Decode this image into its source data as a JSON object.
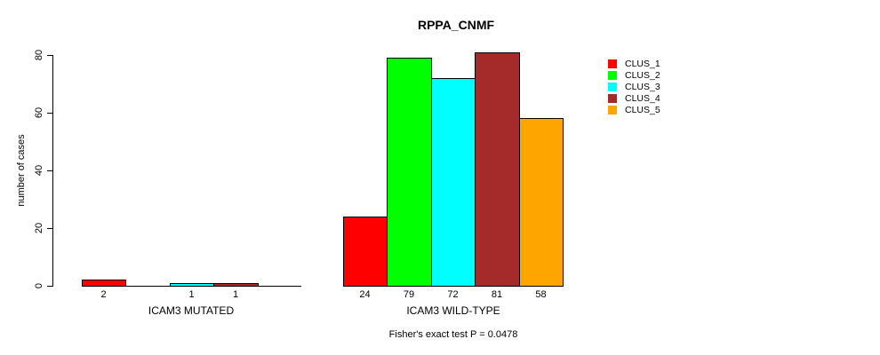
{
  "title": "RPPA_CNMF",
  "footnote": "Fisher's exact test P = 0.0478",
  "legend": {
    "position": "right",
    "items": [
      {
        "label": "CLUS_1",
        "color": "#FF0000"
      },
      {
        "label": "CLUS_2",
        "color": "#00FF00"
      },
      {
        "label": "CLUS_3",
        "color": "#00FFFF"
      },
      {
        "label": "CLUS_4",
        "color": "#A52A2A"
      },
      {
        "label": "CLUS_5",
        "color": "#FFA500"
      }
    ]
  },
  "chart_data": {
    "type": "bar",
    "title": "RPPA_CNMF",
    "ylabel": "number of cases",
    "ylim": [
      0,
      80
    ],
    "yticks": [
      0,
      20,
      40,
      60,
      80
    ],
    "grid": false,
    "legend_position": "right",
    "series": [
      "CLUS_1",
      "CLUS_2",
      "CLUS_3",
      "CLUS_4",
      "CLUS_5"
    ],
    "colors": [
      "#FF0000",
      "#00FF00",
      "#00FFFF",
      "#A52A2A",
      "#FFA500"
    ],
    "bar_border_color": "#000000",
    "value_labels_shown": true,
    "groups": [
      {
        "label": "ICAM3 MUTATED",
        "values": [
          2,
          0,
          1,
          1,
          0
        ]
      },
      {
        "label": "ICAM3 WILD-TYPE",
        "values": [
          24,
          79,
          72,
          81,
          58
        ]
      }
    ],
    "annotation": "Fisher's exact test P = 0.0478"
  }
}
